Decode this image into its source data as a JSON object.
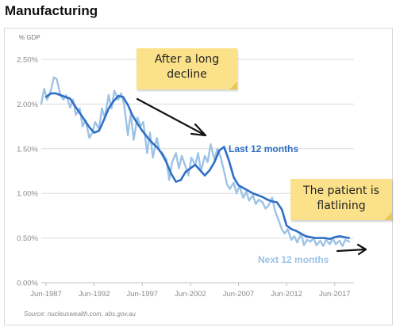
{
  "title": "Manufacturing",
  "source": "Source: nucleuswealth.com, abs.gov.au",
  "annotations": {
    "note1_line1": "After a long",
    "note1_line2": "decline",
    "note2_line1": "The patient is",
    "note2_line2": "flatlining"
  },
  "colors": {
    "dark_series": "#2e6fc5",
    "light_series": "#9dc3e6",
    "note": "#fbe28a",
    "grid": "#d9d9d9"
  },
  "chart_data": {
    "type": "line",
    "title": "Manufacturing",
    "ylabel": "% GDP",
    "xlabel": "",
    "ylim": [
      0,
      2.5
    ],
    "yticks": [
      0,
      0.5,
      1.0,
      1.5,
      2.0,
      2.5
    ],
    "ytick_labels": [
      "0.00%",
      "0.50%",
      "1.00%",
      "1.50%",
      "2.00%",
      "2.50%"
    ],
    "xlim": [
      1987.0,
      2019.5
    ],
    "xticks": [
      1987.5,
      1992.5,
      1997.5,
      2002.5,
      2007.5,
      2012.5,
      2017.5
    ],
    "xtick_labels": [
      "Jun-1987",
      "Jun-1992",
      "Jun-1997",
      "Jun-2002",
      "Jun-2007",
      "Jun-2012",
      "Jun-2017"
    ],
    "grid": "horizontal",
    "series": [
      {
        "name": "Last 12 months",
        "color": "#2e6fc5",
        "x": [
          1987.5,
          1988.0,
          1988.5,
          1989.0,
          1989.5,
          1990.0,
          1990.5,
          1991.0,
          1991.5,
          1992.0,
          1992.5,
          1993.0,
          1993.5,
          1994.0,
          1994.5,
          1995.0,
          1995.5,
          1996.0,
          1996.5,
          1997.0,
          1997.5,
          1998.0,
          1998.5,
          1999.0,
          1999.5,
          2000.0,
          2000.5,
          2001.0,
          2001.5,
          2002.0,
          2002.5,
          2003.0,
          2003.5,
          2004.0,
          2004.5,
          2005.0,
          2005.5,
          2006.0,
          2006.5,
          2007.0,
          2007.5,
          2008.0,
          2008.5,
          2009.0,
          2009.5,
          2010.0,
          2010.5,
          2011.0,
          2011.5,
          2012.0,
          2012.5,
          2013.0,
          2013.5,
          2014.0,
          2014.5,
          2015.0,
          2015.5,
          2016.0,
          2016.5,
          2017.0,
          2017.5,
          2018.0,
          2018.5,
          2019.0
        ],
        "y": [
          2.08,
          2.12,
          2.12,
          2.1,
          2.08,
          2.06,
          1.98,
          1.9,
          1.82,
          1.74,
          1.68,
          1.7,
          1.82,
          1.95,
          2.03,
          2.09,
          2.08,
          1.99,
          1.87,
          1.78,
          1.7,
          1.63,
          1.57,
          1.52,
          1.45,
          1.35,
          1.22,
          1.13,
          1.15,
          1.24,
          1.28,
          1.32,
          1.26,
          1.2,
          1.26,
          1.35,
          1.48,
          1.52,
          1.37,
          1.18,
          1.09,
          1.06,
          1.03,
          1.0,
          0.98,
          0.96,
          0.93,
          0.91,
          0.9,
          0.82,
          0.64,
          0.6,
          0.58,
          0.55,
          0.52,
          0.51,
          0.5,
          0.5,
          0.5,
          0.49,
          0.51,
          0.52,
          0.51,
          0.5
        ]
      },
      {
        "name": "Next 12 months",
        "color": "#9dc3e6",
        "x": [
          1987.0,
          1987.3,
          1987.6,
          1988.0,
          1988.3,
          1988.6,
          1989.0,
          1989.3,
          1989.6,
          1990.0,
          1990.3,
          1990.6,
          1991.0,
          1991.3,
          1991.6,
          1992.0,
          1992.3,
          1992.6,
          1993.0,
          1993.3,
          1993.6,
          1994.0,
          1994.3,
          1994.6,
          1995.0,
          1995.3,
          1995.6,
          1996.0,
          1996.3,
          1996.6,
          1997.0,
          1997.3,
          1997.6,
          1998.0,
          1998.3,
          1998.6,
          1999.0,
          1999.3,
          1999.6,
          2000.0,
          2000.3,
          2000.6,
          2001.0,
          2001.3,
          2001.6,
          2002.0,
          2002.3,
          2002.6,
          2003.0,
          2003.3,
          2003.6,
          2004.0,
          2004.3,
          2004.6,
          2005.0,
          2005.3,
          2005.6,
          2006.0,
          2006.3,
          2006.6,
          2007.0,
          2007.3,
          2007.6,
          2008.0,
          2008.3,
          2008.6,
          2009.0,
          2009.3,
          2009.6,
          2010.0,
          2010.3,
          2010.6,
          2011.0,
          2011.3,
          2011.6,
          2012.0,
          2012.3,
          2012.6,
          2013.0,
          2013.3,
          2013.6,
          2014.0,
          2014.3,
          2014.6,
          2015.0,
          2015.3,
          2015.6,
          2016.0,
          2016.3,
          2016.6,
          2017.0,
          2017.3,
          2017.6,
          2018.0,
          2018.3,
          2018.6,
          2019.0
        ],
        "y": [
          2.0,
          2.17,
          2.05,
          2.15,
          2.3,
          2.28,
          2.1,
          2.05,
          2.1,
          1.96,
          2.05,
          1.88,
          1.95,
          1.75,
          1.82,
          1.62,
          1.68,
          1.8,
          1.72,
          1.95,
          1.85,
          2.1,
          1.95,
          2.15,
          2.05,
          2.12,
          2.0,
          1.65,
          1.9,
          1.6,
          1.85,
          1.75,
          1.8,
          1.45,
          1.68,
          1.4,
          1.62,
          1.48,
          1.45,
          1.38,
          1.15,
          1.35,
          1.45,
          1.28,
          1.42,
          1.3,
          1.2,
          1.4,
          1.32,
          1.45,
          1.25,
          1.42,
          1.35,
          1.55,
          1.38,
          1.5,
          1.42,
          1.25,
          1.1,
          1.05,
          1.12,
          1.0,
          1.08,
          0.95,
          1.02,
          0.92,
          0.98,
          0.88,
          0.93,
          0.9,
          0.83,
          0.86,
          0.95,
          0.8,
          0.72,
          0.6,
          0.55,
          0.6,
          0.48,
          0.52,
          0.45,
          0.55,
          0.42,
          0.48,
          0.46,
          0.5,
          0.42,
          0.47,
          0.41,
          0.48,
          0.43,
          0.5,
          0.43,
          0.47,
          0.41,
          0.48,
          0.46
        ]
      }
    ]
  }
}
